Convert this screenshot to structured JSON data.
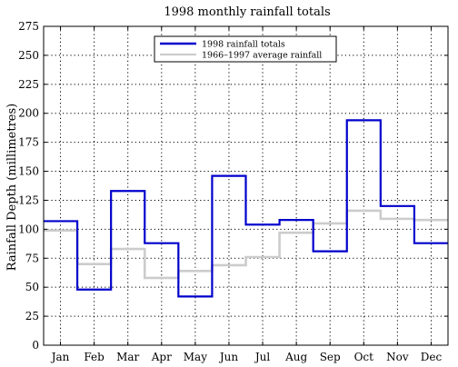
{
  "chart_data": {
    "type": "line",
    "step": true,
    "title": "1998 monthly rainfall totals",
    "xlabel": "",
    "ylabel": "Rainfall Depth (millimetres)",
    "categories": [
      "Jan",
      "Feb",
      "Mar",
      "Apr",
      "May",
      "Jun",
      "Jul",
      "Aug",
      "Sep",
      "Oct",
      "Nov",
      "Dec"
    ],
    "ylim": [
      0,
      275
    ],
    "yticks": [
      0,
      25,
      50,
      75,
      100,
      125,
      150,
      175,
      200,
      225,
      250,
      275
    ],
    "grid": true,
    "legend_position": "top-center",
    "series": [
      {
        "name": "1998 rainfall totals",
        "color": "#0000cc",
        "values": [
          107,
          48,
          133,
          88,
          42,
          146,
          104,
          108,
          81,
          194,
          120,
          88
        ]
      },
      {
        "name": "1966–1997 average rainfall",
        "color": "#cccccc",
        "values": [
          99,
          70,
          83,
          58,
          64,
          69,
          76,
          97,
          105,
          116,
          109,
          108
        ]
      }
    ]
  }
}
